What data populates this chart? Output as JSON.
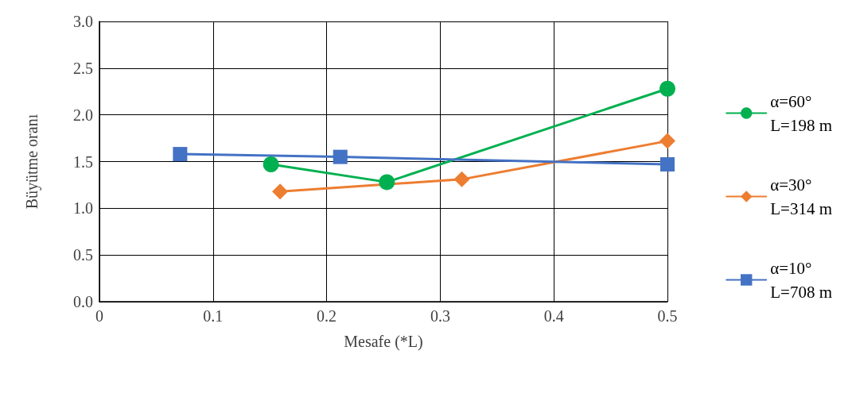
{
  "chart_data": {
    "type": "line",
    "xlabel": "Mesafe (*L)",
    "ylabel": "Büyütme oranı",
    "xlim": [
      0,
      0.5
    ],
    "xticks": [
      0,
      0.1,
      0.2,
      0.3,
      0.4,
      0.5
    ],
    "ylim": [
      0,
      3
    ],
    "yticks": [
      {
        "value": 0,
        "label": "0.0"
      },
      {
        "value": 0.5,
        "label": "0.5"
      },
      {
        "value": 1,
        "label": "1.0"
      },
      {
        "value": 1.5,
        "label": "1.5"
      },
      {
        "value": 2,
        "label": "2.0"
      },
      {
        "value": 2.5,
        "label": "2.5"
      },
      {
        "value": 3,
        "label": "3.0"
      }
    ],
    "grid": true,
    "legend": "right",
    "line_style": "solid",
    "series": [
      {
        "name": "α=60°\nL=198 m",
        "color": "#00b050",
        "marker": "circle",
        "x": [
          0.151,
          0.253,
          0.5
        ],
        "values": [
          1.47,
          1.28,
          2.28
        ]
      },
      {
        "name": "α=30°\nL=314 m",
        "color": "#ed7d31",
        "marker": "diamond",
        "x": [
          0.159,
          0.319,
          0.5
        ],
        "values": [
          1.18,
          1.31,
          1.72
        ]
      },
      {
        "name": "α=10°\nL=708 m",
        "color": "#4472c4",
        "marker": "square",
        "x": [
          0.071,
          0.212,
          0.5
        ],
        "values": [
          1.58,
          1.55,
          1.47
        ]
      }
    ]
  }
}
